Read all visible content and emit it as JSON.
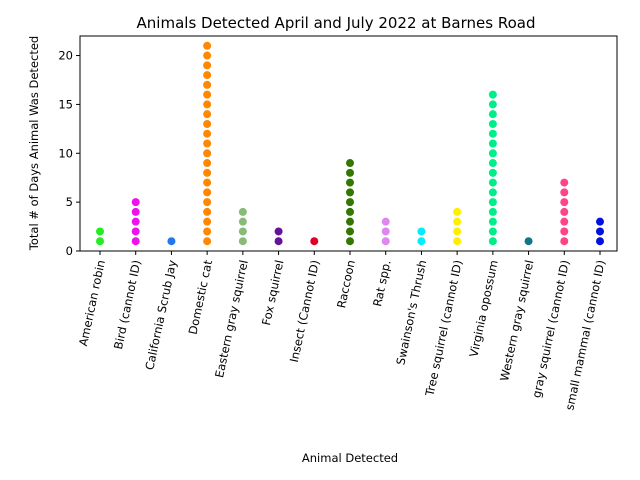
{
  "chart_data": {
    "type": "scatter",
    "title": "Animals Detected April and July 2022 at Barnes Road",
    "xlabel": "Animal Detected",
    "ylabel": "Total # of Days Animal Was Detected",
    "ylim": [
      0,
      22
    ],
    "yticks": [
      0,
      5,
      10,
      15,
      20
    ],
    "grid": false,
    "categories": [
      "American robin",
      "Bird (cannot ID)",
      "California Scrub Jay",
      "Domestic cat",
      "Eastern gray squirrel",
      "Fox squirrel",
      "Insect (Cannot ID)",
      "Raccoon",
      "Rat spp.",
      "Swainson's Thrush",
      "Tree squirrel (cannot ID)",
      "Virginia opossum",
      "Western gray squirrel",
      "gray squirrel (cannot ID)",
      "small mammal (cannot ID)"
    ],
    "max_days": [
      2,
      5,
      1,
      21,
      4,
      2,
      1,
      9,
      3,
      2,
      4,
      16,
      1,
      7,
      3
    ],
    "colors": [
      "#22ee22",
      "#ee11ee",
      "#2277ee",
      "#ff8800",
      "#88bb77",
      "#661199",
      "#dd0022",
      "#337700",
      "#dd88ee",
      "#00eeff",
      "#ffee00",
      "#00ee88",
      "#117788",
      "#ff4488",
      "#0011dd"
    ]
  }
}
